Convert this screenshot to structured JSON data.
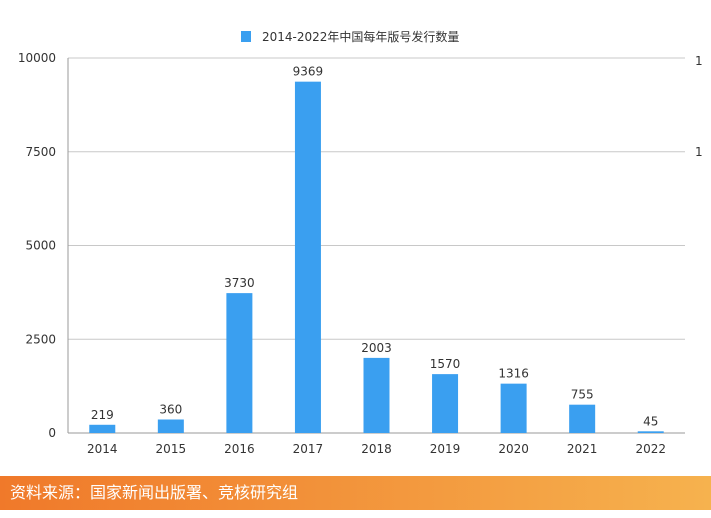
{
  "chart_data": {
    "type": "bar",
    "title": "",
    "legend": {
      "position": "top",
      "entries": [
        {
          "name": "2014-2022年中国每年版号发行数量",
          "color": "#3a9ff0"
        }
      ]
    },
    "categories": [
      "2014",
      "2015",
      "2016",
      "2017",
      "2018",
      "2019",
      "2020",
      "2021",
      "2022"
    ],
    "series": [
      {
        "name": "2014-2022年中国每年版号发行数量",
        "color": "#3a9ff0",
        "values": [
          219,
          360,
          3730,
          9369,
          2003,
          1570,
          1316,
          755,
          45
        ]
      }
    ],
    "data_labels": [
      "219",
      "360",
      "3730",
      "9369",
      "2003",
      "1570",
      "1316",
      "755",
      "45"
    ],
    "ylim": [
      0,
      10000
    ],
    "yticks": [
      0,
      2500,
      5000,
      7500,
      10000
    ],
    "ytick_labels": [
      "0",
      "2500",
      "5000",
      "7500",
      "10000"
    ],
    "right_axis_partial_labels": [
      "1",
      "1"
    ],
    "grid": true,
    "xlabel": "",
    "ylabel": ""
  },
  "footer": {
    "source_text": "资料来源：国家新闻出版署、竞核研究组"
  }
}
